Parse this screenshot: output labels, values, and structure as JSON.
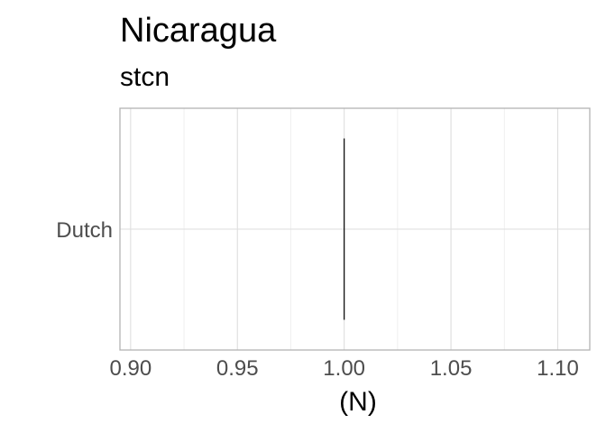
{
  "chart_data": {
    "type": "boxplot",
    "title": "Nicaragua",
    "subtitle": "stcn",
    "xlabel": "(N)",
    "ylabel": "",
    "categories": [
      "Dutch"
    ],
    "values": [
      1.0
    ],
    "xlim": [
      0.895,
      1.115
    ],
    "x_ticks": [
      0.9,
      0.95,
      1.0,
      1.05,
      1.1
    ],
    "x_tick_labels": [
      "0.90",
      "0.95",
      "1.00",
      "1.05",
      "1.10"
    ],
    "grid": true,
    "legend": "none",
    "colors": {
      "panel_border": "#b3b3b3",
      "grid_major": "#dedede",
      "grid_minor": "#efefef",
      "mark": "#000000",
      "tick_text": "#4d4d4d"
    }
  }
}
